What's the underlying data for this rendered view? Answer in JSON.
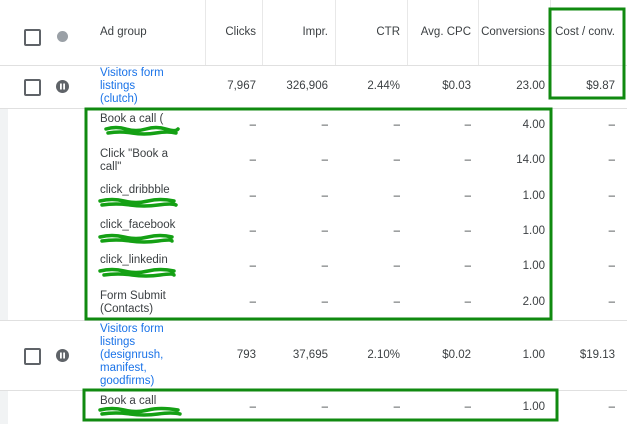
{
  "header": {
    "columns": [
      "Ad group",
      "Clicks",
      "Impr.",
      "CTR",
      "Avg. CPC",
      "Conversions",
      "Cost / conv."
    ]
  },
  "groups": [
    {
      "row": [
        "Visitors form listings (clutch)",
        "7,967",
        "326,906",
        "2.44%",
        "$0.03",
        "23.00",
        "$9.87"
      ],
      "subrows": [
        [
          "Book a call (",
          "–",
          "–",
          "–",
          "–",
          "4.00",
          "–"
        ],
        [
          "Click \"Book a call\"",
          "–",
          "–",
          "–",
          "–",
          "14.00",
          "–"
        ],
        [
          "click_dribbble",
          "–",
          "–",
          "–",
          "–",
          "1.00",
          "–"
        ],
        [
          "click_facebook",
          "–",
          "–",
          "–",
          "–",
          "1.00",
          "–"
        ],
        [
          "click_linkedin",
          "–",
          "–",
          "–",
          "–",
          "1.00",
          "–"
        ],
        [
          "Form Submit (Contacts)",
          "–",
          "–",
          "–",
          "–",
          "2.00",
          "–"
        ]
      ]
    },
    {
      "row": [
        "Visitors form listings (designrush, manifest, goodfirms)",
        "793",
        "37,695",
        "2.10%",
        "$0.02",
        "1.00",
        "$19.13"
      ],
      "subrows": [
        [
          "Book a call",
          "–",
          "–",
          "–",
          "–",
          "1.00",
          "–"
        ]
      ]
    }
  ]
}
